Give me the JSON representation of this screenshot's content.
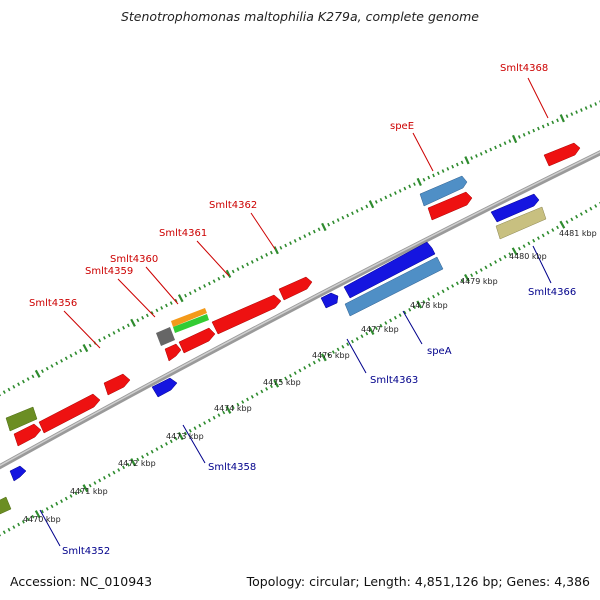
{
  "title": "Stenotrophomonas maltophilia K279a, complete genome",
  "footer": {
    "accession": "Accession: NC_010943",
    "info": "Topology: circular; Length: 4,851,126 bp; Genes: 4,386"
  },
  "colors": {
    "backbone": "#8a8a8a",
    "tick": "#2e8b2e",
    "forward_label": "#cc0000",
    "reverse_label": "#00008b",
    "red_feature": "#ee1111",
    "blue_feature": "#1515e0",
    "steel_feature": "#4f8fc6",
    "olive_feature": "#6b8e23",
    "khaki_feature": "#c8c080",
    "orange_feature": "#f49a1a",
    "green_feature": "#33cc33",
    "gray_feature": "#666666"
  },
  "scale_labels": [
    "4470 kbp",
    "4471 kbp",
    "4472 kbp",
    "4473 kbp",
    "4474 kbp",
    "4475 kbp",
    "4476 kbp",
    "4477 kbp",
    "4478 kbp",
    "4479 kbp",
    "4480 kbp",
    "4481 kbp"
  ],
  "forward_genes": [
    "Smlt4356",
    "Smlt4359",
    "Smlt4360",
    "Smlt4361",
    "Smlt4362",
    "speE",
    "Smlt4368"
  ],
  "reverse_genes": [
    "Smlt4352",
    "Smlt4358",
    "Smlt4363",
    "speA",
    "Smlt4366"
  ]
}
